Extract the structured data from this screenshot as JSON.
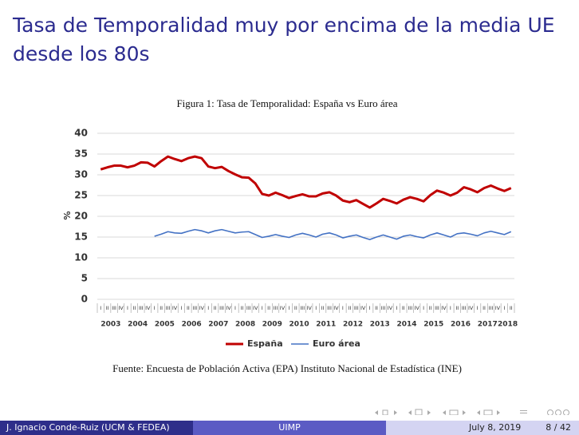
{
  "header": {
    "title": "Tasa de Temporalidad muy por encima de la media UE desde los 80s"
  },
  "chart_data": {
    "type": "line",
    "title": "Figura 1: Tasa de Temporalidad: España vs Euro área",
    "source": "Fuente: Encuesta de Población Activa (EPA)  Instituto Nacional de Estadística (INE)",
    "ylabel": "%",
    "categories": [
      "I",
      "II",
      "III",
      "IV",
      "I",
      "II",
      "III",
      "IV",
      "I",
      "II",
      "III",
      "IV",
      "I",
      "II",
      "III",
      "IV",
      "I",
      "II",
      "III",
      "IV",
      "I",
      "II",
      "III",
      "IV",
      "I",
      "II",
      "III",
      "IV",
      "I",
      "II",
      "III",
      "IV",
      "I",
      "II",
      "III",
      "IV",
      "I",
      "II",
      "III",
      "IV",
      "I",
      "II",
      "III",
      "IV",
      "I",
      "II",
      "III",
      "IV",
      "I",
      "II",
      "III",
      "IV",
      "I",
      "II",
      "III",
      "IV",
      "I",
      "II",
      "III",
      "IV",
      "I",
      "II"
    ],
    "years": [
      "2003",
      "2004",
      "2005",
      "2006",
      "2007",
      "2008",
      "2009",
      "2010",
      "2011",
      "2012",
      "2013",
      "2014",
      "2015",
      "2016",
      "2017",
      "2018"
    ],
    "series": [
      {
        "name": "España",
        "color": "#c00000",
        "values": [
          31.3,
          31.8,
          32.2,
          32.2,
          31.8,
          32.2,
          33.0,
          32.9,
          32.0,
          33.3,
          34.4,
          33.8,
          33.3,
          34.0,
          34.4,
          34.0,
          32.0,
          31.6,
          31.9,
          30.9,
          30.1,
          29.4,
          29.3,
          27.9,
          25.4,
          25.0,
          25.7,
          25.1,
          24.4,
          24.9,
          25.3,
          24.8,
          24.8,
          25.5,
          25.8,
          25.0,
          23.8,
          23.4,
          23.9,
          23.0,
          22.1,
          23.1,
          24.2,
          23.7,
          23.1,
          24.0,
          24.6,
          24.2,
          23.6,
          25.1,
          26.2,
          25.7,
          25.0,
          25.7,
          27.0,
          26.5,
          25.8,
          26.8,
          27.4,
          26.7,
          26.1,
          26.8
        ]
      },
      {
        "name": "Euro área",
        "color": "#4472c4",
        "values": [
          null,
          null,
          null,
          null,
          null,
          null,
          null,
          null,
          15.2,
          15.7,
          16.3,
          16.0,
          15.9,
          16.4,
          16.8,
          16.5,
          16.0,
          16.5,
          16.8,
          16.4,
          16.0,
          16.2,
          16.3,
          15.6,
          14.9,
          15.2,
          15.6,
          15.2,
          14.9,
          15.5,
          15.9,
          15.5,
          15.0,
          15.7,
          16.0,
          15.5,
          14.8,
          15.2,
          15.5,
          14.9,
          14.4,
          15.0,
          15.5,
          15.0,
          14.5,
          15.2,
          15.5,
          15.1,
          14.8,
          15.5,
          16.0,
          15.5,
          15.0,
          15.8,
          16.0,
          15.7,
          15.3,
          16.0,
          16.4,
          16.0,
          15.6,
          16.3
        ]
      }
    ],
    "ylim": [
      0,
      40
    ],
    "yticks": [
      0,
      5,
      10,
      15,
      20,
      25,
      30,
      35,
      40
    ],
    "grid": true,
    "legend": "bottom"
  },
  "footer": {
    "author": "J. Ignacio Conde-Ruiz (UCM & FEDEA)",
    "venue": "UIMP",
    "date": "July 8, 2019",
    "page": "8 / 42"
  }
}
